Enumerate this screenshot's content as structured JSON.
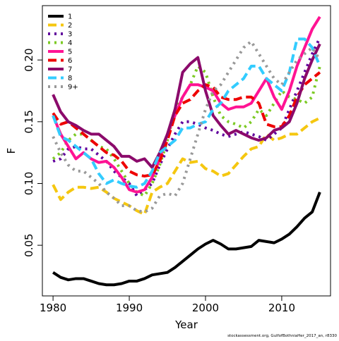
{
  "chart_data": {
    "type": "line",
    "x_label": "Year",
    "y_label": "F",
    "footnote": "stockassessment.org, GulfofBothniaHer_2017_an, r8330",
    "legend": "topleft",
    "x": [
      1980,
      1981,
      1982,
      1983,
      1984,
      1985,
      1986,
      1987,
      1988,
      1989,
      1990,
      1991,
      1992,
      1993,
      1994,
      1995,
      1996,
      1997,
      1998,
      1999,
      2000,
      2001,
      2002,
      2003,
      2004,
      2005,
      2006,
      2007,
      2008,
      2009,
      2010,
      2011,
      2012,
      2013,
      2014,
      2015
    ],
    "xlim": [
      1978.6,
      2016.4
    ],
    "xticks": [
      1980,
      1990,
      2000,
      2010
    ],
    "ylim": [
      0.009,
      0.244
    ],
    "yticks": [
      0.05,
      {
        "value": 0.1,
        "label": "0.10"
      },
      0.15,
      {
        "value": 0.2,
        "label": "0.20"
      }
    ],
    "series": [
      {
        "name": "1",
        "color": "#000000",
        "linestyle": "solid",
        "values": [
          0.028,
          0.024,
          0.022,
          0.023,
          0.023,
          0.021,
          0.019,
          0.018,
          0.018,
          0.019,
          0.021,
          0.021,
          0.023,
          0.026,
          0.027,
          0.028,
          0.032,
          0.037,
          0.042,
          0.047,
          0.051,
          0.054,
          0.051,
          0.047,
          0.047,
          0.048,
          0.049,
          0.054,
          0.053,
          0.052,
          0.055,
          0.059,
          0.065,
          0.072,
          0.077,
          0.093
        ]
      },
      {
        "name": "2",
        "color": "#F5C710",
        "linestyle": "dashed",
        "values": [
          0.099,
          0.087,
          0.093,
          0.097,
          0.097,
          0.096,
          0.097,
          0.093,
          0.088,
          0.085,
          0.082,
          0.078,
          0.075,
          0.093,
          0.097,
          0.1,
          0.11,
          0.12,
          0.117,
          0.118,
          0.112,
          0.11,
          0.106,
          0.108,
          0.115,
          0.122,
          0.128,
          0.13,
          0.14,
          0.135,
          0.137,
          0.14,
          0.14,
          0.145,
          0.15,
          0.153
        ]
      },
      {
        "name": "3",
        "color": "#61019D",
        "linestyle": "dotted",
        "values": [
          0.118,
          0.12,
          0.128,
          0.13,
          0.128,
          0.128,
          0.123,
          0.118,
          0.11,
          0.105,
          0.1,
          0.09,
          0.095,
          0.1,
          0.115,
          0.128,
          0.14,
          0.15,
          0.15,
          0.148,
          0.145,
          0.143,
          0.14,
          0.138,
          0.14,
          0.142,
          0.14,
          0.138,
          0.135,
          0.14,
          0.145,
          0.16,
          0.175,
          0.19,
          0.205,
          0.218
        ]
      },
      {
        "name": "4",
        "color": "#7CCA24",
        "linestyle": "dotted",
        "values": [
          0.12,
          0.125,
          0.135,
          0.14,
          0.14,
          0.135,
          0.13,
          0.128,
          0.12,
          0.11,
          0.1,
          0.093,
          0.09,
          0.1,
          0.115,
          0.135,
          0.16,
          0.17,
          0.18,
          0.195,
          0.19,
          0.17,
          0.155,
          0.15,
          0.148,
          0.145,
          0.15,
          0.16,
          0.155,
          0.165,
          0.175,
          0.17,
          0.168,
          0.165,
          0.17,
          0.195
        ]
      },
      {
        "name": "5",
        "color": "#FF1393",
        "linestyle": "solid",
        "values": [
          0.155,
          0.14,
          0.13,
          0.12,
          0.125,
          0.12,
          0.117,
          0.118,
          0.113,
          0.105,
          0.095,
          0.093,
          0.095,
          0.105,
          0.12,
          0.14,
          0.155,
          0.17,
          0.18,
          0.18,
          0.178,
          0.175,
          0.165,
          0.16,
          0.162,
          0.162,
          0.165,
          0.175,
          0.185,
          0.17,
          0.16,
          0.175,
          0.195,
          0.21,
          0.225,
          0.235
        ]
      },
      {
        "name": "6",
        "color": "#EE0000",
        "linestyle": "dashed",
        "values": [
          0.157,
          0.148,
          0.15,
          0.145,
          0.14,
          0.135,
          0.13,
          0.125,
          0.123,
          0.118,
          0.11,
          0.107,
          0.106,
          0.107,
          0.118,
          0.135,
          0.155,
          0.165,
          0.168,
          0.175,
          0.18,
          0.178,
          0.17,
          0.168,
          0.168,
          0.17,
          0.17,
          0.165,
          0.148,
          0.146,
          0.146,
          0.155,
          0.17,
          0.18,
          0.185,
          0.19
        ]
      },
      {
        "name": "7",
        "color": "#8B0A6B",
        "linestyle": "solid",
        "values": [
          0.172,
          0.158,
          0.15,
          0.147,
          0.143,
          0.14,
          0.14,
          0.135,
          0.13,
          0.122,
          0.122,
          0.118,
          0.12,
          0.113,
          0.125,
          0.14,
          0.16,
          0.19,
          0.197,
          0.202,
          0.175,
          0.155,
          0.147,
          0.14,
          0.143,
          0.14,
          0.137,
          0.135,
          0.137,
          0.143,
          0.145,
          0.15,
          0.165,
          0.185,
          0.2,
          0.213
        ]
      },
      {
        "name": "8",
        "color": "#33CCFF",
        "linestyle": "dashed",
        "values": [
          0.155,
          0.138,
          0.135,
          0.13,
          0.125,
          0.12,
          0.108,
          0.1,
          0.103,
          0.1,
          0.098,
          0.097,
          0.1,
          0.11,
          0.125,
          0.13,
          0.135,
          0.145,
          0.145,
          0.148,
          0.15,
          0.16,
          0.165,
          0.175,
          0.18,
          0.185,
          0.195,
          0.195,
          0.185,
          0.18,
          0.175,
          0.19,
          0.217,
          0.217,
          0.21,
          0.195
        ]
      },
      {
        "name": "9+",
        "color": "#999999",
        "linestyle": "dotted",
        "values": [
          0.138,
          0.125,
          0.115,
          0.11,
          0.11,
          0.105,
          0.1,
          0.093,
          0.088,
          0.082,
          0.082,
          0.078,
          0.077,
          0.08,
          0.09,
          0.092,
          0.09,
          0.1,
          0.12,
          0.14,
          0.16,
          0.175,
          0.18,
          0.19,
          0.2,
          0.21,
          0.215,
          0.205,
          0.195,
          0.185,
          0.18,
          0.19,
          0.2,
          0.205,
          0.21,
          0.2
        ]
      }
    ]
  }
}
